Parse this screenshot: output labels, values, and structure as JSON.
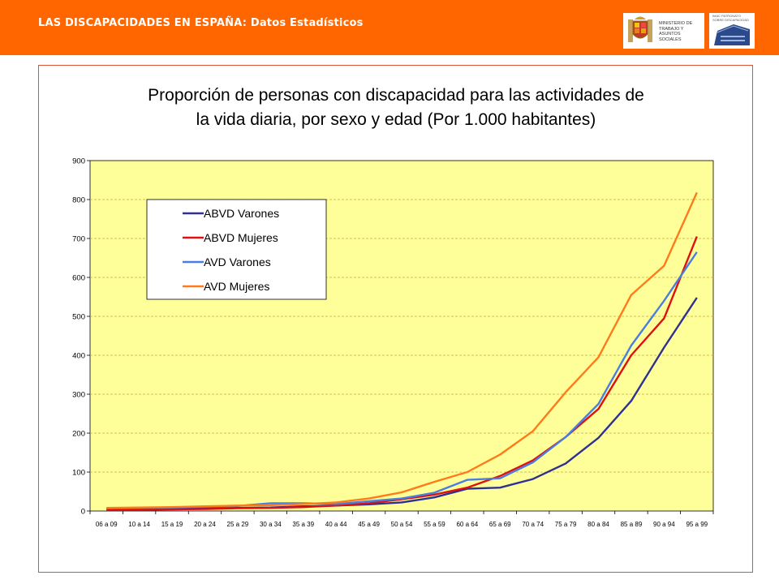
{
  "header": {
    "title": "LAS DISCAPACIDADES EN ESPAÑA: Datos Estadísticos",
    "logo_ministerio": "MINISTERIO DE TRABAJO Y ASUNTOS SOCIALES",
    "logo_imserso": "IMAC PATRONATO SOBRE DISCAPACIDAD",
    "bar_color": "#ff6600"
  },
  "chart_data": {
    "type": "line",
    "title": "Proporción de personas con discapacidad para las actividades de la vida diaria, por sexo y edad (Por 1.000 habitantes)",
    "title_lines": [
      "Proporción de personas con discapacidad para las actividades de",
      "la vida diaria, por sexo y edad (Por 1.000 habitantes)"
    ],
    "xlabel": "",
    "ylabel": "",
    "ylim": [
      0,
      900
    ],
    "yticks": [
      0,
      100,
      200,
      300,
      400,
      500,
      600,
      700,
      800,
      900
    ],
    "grid": true,
    "legend_position": "top-left",
    "categories": [
      "06 a 09",
      "10 a 14",
      "15 a 19",
      "20 a 24",
      "25 a 29",
      "30 a 34",
      "35 a 39",
      "40 a 44",
      "45 a 49",
      "50 a 54",
      "55 a 59",
      "60 a 64",
      "65 a 69",
      "70 a 74",
      "75 a 79",
      "80 a 84",
      "85 a 89",
      "90 a 94",
      "95 a 99"
    ],
    "series": [
      {
        "name": "ABVD Varones",
        "color": "#2e3192",
        "values": [
          5,
          6,
          6,
          7,
          8,
          9,
          12,
          14,
          17,
          22,
          35,
          57,
          60,
          82,
          122,
          188,
          283,
          420,
          548
        ]
      },
      {
        "name": "ABVD Mujeres",
        "color": "#dd1111",
        "values": [
          3,
          3,
          4,
          5,
          7,
          8,
          10,
          14,
          20,
          30,
          42,
          60,
          90,
          130,
          190,
          262,
          400,
          495,
          705
        ]
      },
      {
        "name": "AVD Varones",
        "color": "#4a7ee0",
        "values": [
          7,
          8,
          9,
          11,
          13,
          20,
          20,
          18,
          25,
          32,
          47,
          80,
          84,
          125,
          190,
          275,
          425,
          540,
          665
        ]
      },
      {
        "name": "AVD Mujeres",
        "color": "#ff7a1a",
        "values": [
          8,
          9,
          10,
          12,
          14,
          15,
          18,
          22,
          32,
          48,
          75,
          100,
          145,
          205,
          305,
          395,
          555,
          630,
          818
        ]
      }
    ],
    "plot_background": "#ffff99"
  }
}
